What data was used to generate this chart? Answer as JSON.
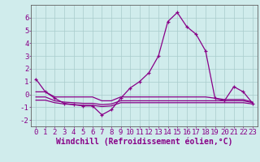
{
  "x": [
    0,
    1,
    2,
    3,
    4,
    5,
    6,
    7,
    8,
    9,
    10,
    11,
    12,
    13,
    14,
    15,
    16,
    17,
    18,
    19,
    20,
    21,
    22,
    23
  ],
  "y_main": [
    1.2,
    0.2,
    -0.3,
    -0.7,
    -0.8,
    -0.9,
    -0.9,
    -1.6,
    -1.2,
    -0.3,
    0.5,
    1.0,
    1.7,
    3.0,
    5.7,
    6.4,
    5.3,
    4.7,
    3.4,
    -0.3,
    -0.5,
    0.6,
    0.2,
    -0.7
  ],
  "y_line1": [
    0.2,
    0.2,
    -0.2,
    -0.2,
    -0.2,
    -0.2,
    -0.2,
    -0.5,
    -0.5,
    -0.2,
    -0.2,
    -0.2,
    -0.2,
    -0.2,
    -0.2,
    -0.2,
    -0.2,
    -0.2,
    -0.2,
    -0.3,
    -0.4,
    -0.4,
    -0.4,
    -0.6
  ],
  "y_line2": [
    -0.2,
    -0.2,
    -0.5,
    -0.6,
    -0.65,
    -0.7,
    -0.7,
    -0.8,
    -0.75,
    -0.5,
    -0.5,
    -0.5,
    -0.5,
    -0.5,
    -0.5,
    -0.5,
    -0.5,
    -0.5,
    -0.5,
    -0.5,
    -0.5,
    -0.5,
    -0.5,
    -0.65
  ],
  "y_line3": [
    -0.45,
    -0.45,
    -0.65,
    -0.75,
    -0.8,
    -0.85,
    -0.85,
    -0.95,
    -0.9,
    -0.65,
    -0.65,
    -0.65,
    -0.65,
    -0.65,
    -0.65,
    -0.65,
    -0.65,
    -0.65,
    -0.65,
    -0.65,
    -0.65,
    -0.65,
    -0.65,
    -0.75
  ],
  "line_color": "#880088",
  "bg_color": "#d0ecec",
  "grid_color": "#a8cccc",
  "axis_color": "#606060",
  "ylim": [
    -2.5,
    7.0
  ],
  "xlim": [
    -0.5,
    23.5
  ],
  "xlabel": "Windchill (Refroidissement éolien,°C)",
  "yticks": [
    -2,
    -1,
    0,
    1,
    2,
    3,
    4,
    5,
    6
  ],
  "xticks": [
    0,
    1,
    2,
    3,
    4,
    5,
    6,
    7,
    8,
    9,
    10,
    11,
    12,
    13,
    14,
    15,
    16,
    17,
    18,
    19,
    20,
    21,
    22,
    23
  ],
  "tick_fontsize": 6.5,
  "xlabel_fontsize": 7.0
}
